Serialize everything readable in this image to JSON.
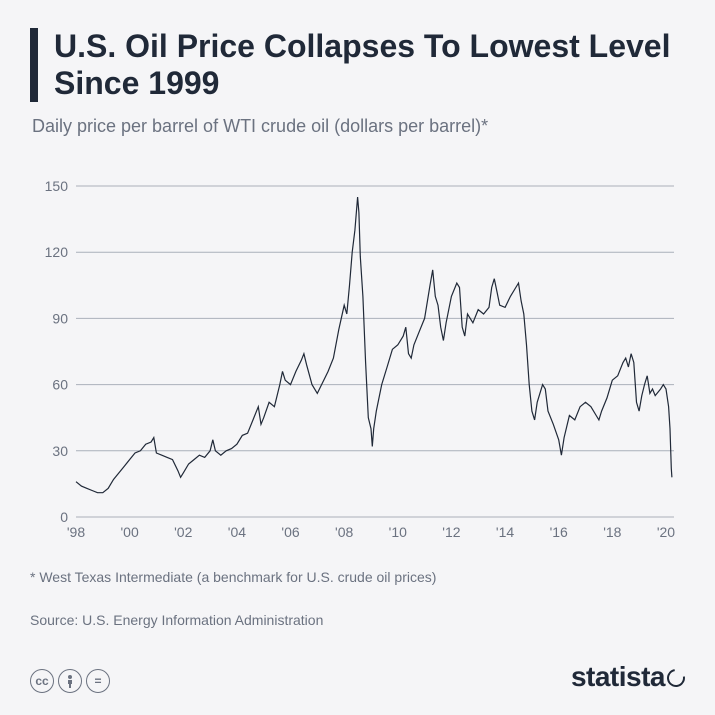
{
  "title": "U.S. Oil Price Collapses To Lowest Level Since 1999",
  "subtitle": "Daily price per barrel of WTI crude oil (dollars per barrel)*",
  "footnote": "* West Texas Intermediate (a benchmark for U.S. crude oil prices)",
  "source": "Source: U.S. Energy Information Administration",
  "logo": "statista",
  "chart": {
    "type": "line",
    "line_color": "#202938",
    "line_width": 1.2,
    "background_color": "#f5f5f7",
    "grid_color": "#aab0ba",
    "axis_text_color": "#6b7280",
    "axis_fontsize": 14,
    "xlim": [
      1998,
      2020.3
    ],
    "ylim": [
      0,
      155
    ],
    "yticks": [
      0,
      30,
      60,
      90,
      120,
      150
    ],
    "xticks": [
      1998,
      2000,
      2002,
      2004,
      2006,
      2008,
      2010,
      2012,
      2014,
      2016,
      2018,
      2020
    ],
    "xtick_labels": [
      "'98",
      "'00",
      "'02",
      "'04",
      "'06",
      "'08",
      "'10",
      "'12",
      "'14",
      "'16",
      "'18",
      "'20"
    ],
    "data": [
      [
        1998.0,
        16
      ],
      [
        1998.2,
        14
      ],
      [
        1998.4,
        13
      ],
      [
        1998.6,
        12
      ],
      [
        1998.8,
        11
      ],
      [
        1999.0,
        11
      ],
      [
        1999.2,
        13
      ],
      [
        1999.4,
        17
      ],
      [
        1999.6,
        20
      ],
      [
        1999.8,
        23
      ],
      [
        2000.0,
        26
      ],
      [
        2000.2,
        29
      ],
      [
        2000.4,
        30
      ],
      [
        2000.6,
        33
      ],
      [
        2000.8,
        34
      ],
      [
        2000.9,
        36
      ],
      [
        2001.0,
        29
      ],
      [
        2001.2,
        28
      ],
      [
        2001.4,
        27
      ],
      [
        2001.6,
        26
      ],
      [
        2001.8,
        21
      ],
      [
        2001.9,
        18
      ],
      [
        2002.0,
        20
      ],
      [
        2002.2,
        24
      ],
      [
        2002.4,
        26
      ],
      [
        2002.6,
        28
      ],
      [
        2002.8,
        27
      ],
      [
        2003.0,
        30
      ],
      [
        2003.1,
        35
      ],
      [
        2003.2,
        30
      ],
      [
        2003.4,
        28
      ],
      [
        2003.6,
        30
      ],
      [
        2003.8,
        31
      ],
      [
        2004.0,
        33
      ],
      [
        2004.2,
        37
      ],
      [
        2004.4,
        38
      ],
      [
        2004.6,
        44
      ],
      [
        2004.8,
        50
      ],
      [
        2004.9,
        42
      ],
      [
        2005.0,
        45
      ],
      [
        2005.2,
        52
      ],
      [
        2005.4,
        50
      ],
      [
        2005.6,
        60
      ],
      [
        2005.7,
        66
      ],
      [
        2005.8,
        62
      ],
      [
        2006.0,
        60
      ],
      [
        2006.2,
        66
      ],
      [
        2006.4,
        71
      ],
      [
        2006.5,
        74
      ],
      [
        2006.6,
        69
      ],
      [
        2006.8,
        60
      ],
      [
        2007.0,
        56
      ],
      [
        2007.2,
        61
      ],
      [
        2007.4,
        66
      ],
      [
        2007.6,
        72
      ],
      [
        2007.8,
        85
      ],
      [
        2008.0,
        96
      ],
      [
        2008.1,
        92
      ],
      [
        2008.2,
        105
      ],
      [
        2008.3,
        120
      ],
      [
        2008.4,
        130
      ],
      [
        2008.5,
        145
      ],
      [
        2008.55,
        138
      ],
      [
        2008.6,
        118
      ],
      [
        2008.7,
        100
      ],
      [
        2008.8,
        70
      ],
      [
        2008.9,
        45
      ],
      [
        2009.0,
        40
      ],
      [
        2009.05,
        32
      ],
      [
        2009.1,
        40
      ],
      [
        2009.2,
        48
      ],
      [
        2009.4,
        60
      ],
      [
        2009.6,
        68
      ],
      [
        2009.8,
        76
      ],
      [
        2010.0,
        78
      ],
      [
        2010.2,
        82
      ],
      [
        2010.3,
        86
      ],
      [
        2010.4,
        74
      ],
      [
        2010.5,
        72
      ],
      [
        2010.6,
        78
      ],
      [
        2010.8,
        84
      ],
      [
        2011.0,
        90
      ],
      [
        2011.2,
        105
      ],
      [
        2011.3,
        112
      ],
      [
        2011.4,
        100
      ],
      [
        2011.5,
        96
      ],
      [
        2011.6,
        86
      ],
      [
        2011.7,
        80
      ],
      [
        2011.8,
        88
      ],
      [
        2012.0,
        100
      ],
      [
        2012.2,
        106
      ],
      [
        2012.3,
        104
      ],
      [
        2012.4,
        86
      ],
      [
        2012.5,
        82
      ],
      [
        2012.6,
        92
      ],
      [
        2012.8,
        88
      ],
      [
        2013.0,
        94
      ],
      [
        2013.2,
        92
      ],
      [
        2013.4,
        95
      ],
      [
        2013.5,
        104
      ],
      [
        2013.6,
        108
      ],
      [
        2013.7,
        102
      ],
      [
        2013.8,
        96
      ],
      [
        2014.0,
        95
      ],
      [
        2014.2,
        100
      ],
      [
        2014.4,
        104
      ],
      [
        2014.5,
        106
      ],
      [
        2014.6,
        98
      ],
      [
        2014.7,
        92
      ],
      [
        2014.8,
        78
      ],
      [
        2014.9,
        60
      ],
      [
        2015.0,
        48
      ],
      [
        2015.1,
        44
      ],
      [
        2015.2,
        52
      ],
      [
        2015.4,
        60
      ],
      [
        2015.5,
        58
      ],
      [
        2015.6,
        48
      ],
      [
        2015.8,
        42
      ],
      [
        2016.0,
        35
      ],
      [
        2016.1,
        28
      ],
      [
        2016.2,
        36
      ],
      [
        2016.4,
        46
      ],
      [
        2016.6,
        44
      ],
      [
        2016.8,
        50
      ],
      [
        2017.0,
        52
      ],
      [
        2017.2,
        50
      ],
      [
        2017.4,
        46
      ],
      [
        2017.5,
        44
      ],
      [
        2017.6,
        48
      ],
      [
        2017.8,
        54
      ],
      [
        2018.0,
        62
      ],
      [
        2018.2,
        64
      ],
      [
        2018.4,
        70
      ],
      [
        2018.5,
        72
      ],
      [
        2018.6,
        68
      ],
      [
        2018.7,
        74
      ],
      [
        2018.8,
        70
      ],
      [
        2018.9,
        52
      ],
      [
        2019.0,
        48
      ],
      [
        2019.1,
        55
      ],
      [
        2019.2,
        60
      ],
      [
        2019.3,
        64
      ],
      [
        2019.4,
        56
      ],
      [
        2019.5,
        58
      ],
      [
        2019.6,
        55
      ],
      [
        2019.8,
        58
      ],
      [
        2019.9,
        60
      ],
      [
        2020.0,
        58
      ],
      [
        2020.1,
        50
      ],
      [
        2020.15,
        40
      ],
      [
        2020.2,
        22
      ],
      [
        2020.22,
        18
      ]
    ]
  }
}
